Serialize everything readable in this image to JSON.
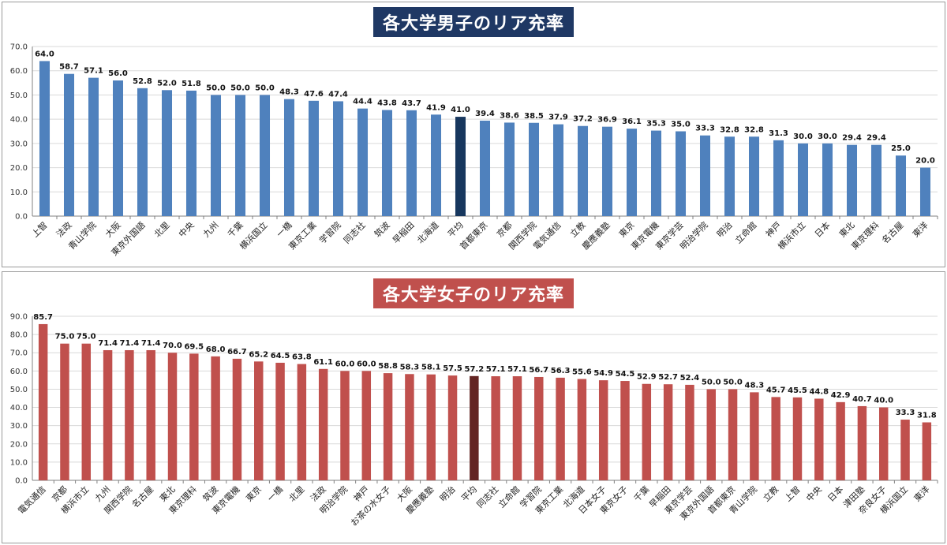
{
  "chart_data": [
    {
      "type": "bar",
      "title": "各大学男子のリア充率",
      "ylim": [
        0,
        70
      ],
      "yticks": [
        "0.0",
        "10.0",
        "20.0",
        "30.0",
        "40.0",
        "50.0",
        "60.0",
        "70.0"
      ],
      "grid": true,
      "bar_color": "#4f81bd",
      "highlight_color": "#17375e",
      "highlight_category": "平均",
      "title_bg": "#1f3864",
      "categories": [
        "上智",
        "法政",
        "青山学院",
        "大阪",
        "東京外国語",
        "北里",
        "中央",
        "九州",
        "千葉",
        "横浜国立",
        "一橋",
        "東京工業",
        "学習院",
        "同志社",
        "筑波",
        "早稲田",
        "北海道",
        "平均",
        "首都東京",
        "京都",
        "関西学院",
        "電気通信",
        "立教",
        "慶應義塾",
        "東京",
        "東京電機",
        "東京学芸",
        "明治学院",
        "明治",
        "立命館",
        "神戸",
        "横浜市立",
        "日本",
        "東北",
        "東京理科",
        "名古屋",
        "東洋"
      ],
      "values": [
        64.0,
        58.7,
        57.1,
        56.0,
        52.8,
        52.0,
        51.8,
        50.0,
        50.0,
        50.0,
        48.3,
        47.6,
        47.4,
        44.4,
        43.8,
        43.7,
        41.9,
        41.0,
        39.4,
        38.6,
        38.5,
        37.9,
        37.2,
        36.9,
        36.1,
        35.3,
        35.0,
        33.3,
        32.8,
        32.8,
        31.3,
        30.0,
        30.0,
        29.4,
        29.4,
        25.0,
        20.0
      ],
      "labels": [
        "64.0",
        "58.7",
        "57.1",
        "56.0",
        "52.8",
        "52.0",
        "51.8",
        "50.0",
        "50.0",
        "50.0",
        "48.3",
        "47.6",
        "47.4",
        "44.4",
        "43.8",
        "43.7",
        "41.9",
        "41.0",
        "39.4",
        "38.6",
        "38.5",
        "37.9",
        "37.2",
        "36.9",
        "36.1",
        "35.3",
        "35.0",
        "33.3",
        "32.8",
        "32.8",
        "31.3",
        "30.0",
        "30.0",
        "29.4",
        "29.4",
        "25.0",
        "20.0"
      ]
    },
    {
      "type": "bar",
      "title": "各大学女子のリア充率",
      "ylim": [
        0,
        90
      ],
      "yticks": [
        "0.0",
        "10.0",
        "20.0",
        "30.0",
        "40.0",
        "50.0",
        "60.0",
        "70.0",
        "80.0",
        "90.0"
      ],
      "grid": true,
      "bar_color": "#c0504d",
      "highlight_color": "#632523",
      "highlight_category": "平均",
      "title_bg": "#c0504d",
      "categories": [
        "電気通信",
        "京都",
        "横浜市立",
        "九州",
        "関西学院",
        "名古屋",
        "東北",
        "東京理科",
        "筑波",
        "東京電機",
        "東京",
        "一橋",
        "北里",
        "法政",
        "明治学院",
        "神戸",
        "お茶の水女子",
        "大阪",
        "慶應義塾",
        "明治",
        "平均",
        "同志社",
        "立命館",
        "学習院",
        "東京工業",
        "北海道",
        "日本女子",
        "東京女子",
        "千葉",
        "早稲田",
        "東京学芸",
        "東京外国語",
        "首都東京",
        "青山学院",
        "立教",
        "上智",
        "中央",
        "日本",
        "津田塾",
        "奈良女子",
        "横浜国立",
        "東洋"
      ],
      "values": [
        85.7,
        75.0,
        75.0,
        71.4,
        71.4,
        71.4,
        70.0,
        69.5,
        68.0,
        66.7,
        65.2,
        64.5,
        63.8,
        61.1,
        60.0,
        60.0,
        58.8,
        58.3,
        58.1,
        57.5,
        57.2,
        57.1,
        57.1,
        56.7,
        56.3,
        55.6,
        54.9,
        54.5,
        52.9,
        52.7,
        52.4,
        50.0,
        50.0,
        48.3,
        45.7,
        45.5,
        44.8,
        42.9,
        40.7,
        40.0,
        33.3,
        31.8
      ],
      "labels": [
        "85.7",
        "75.0",
        "75.0",
        "71.4",
        "71.4",
        "71.4",
        "70.0",
        "69.5",
        "68.0",
        "66.7",
        "65.2",
        "64.5",
        "63.8",
        "61.1",
        "60.0",
        "60.0",
        "58.8",
        "58.3",
        "58.1",
        "57.5",
        "57.2",
        "57.1",
        "57.1",
        "56.7",
        "56.3",
        "55.6",
        "54.9",
        "54.5",
        "52.9",
        "52.7",
        "52.4",
        "50.0",
        "50.0",
        "48.3",
        "45.7",
        "45.5",
        "44.8",
        "42.9",
        "40.7",
        "40.0",
        "33.3",
        "31.8"
      ]
    }
  ]
}
